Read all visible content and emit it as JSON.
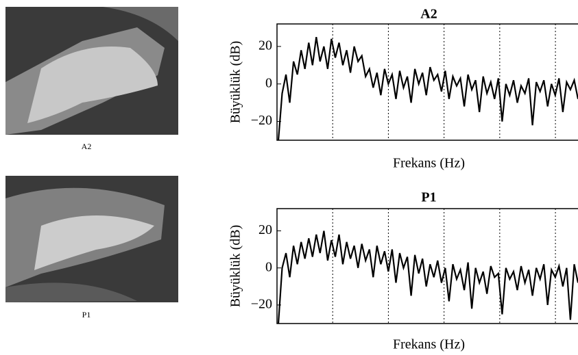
{
  "images": [
    {
      "caption": "A2"
    },
    {
      "caption": "P1"
    }
  ],
  "chart_data": [
    {
      "type": "line",
      "title": "A2",
      "ylabel": "Büyüklük (dB)",
      "xlabel": "Frekans (Hz)",
      "color": "#000000",
      "ylim": [
        -30,
        32
      ],
      "yticks": [
        {
          "value": -20,
          "label": "−20"
        },
        0,
        20
      ],
      "values": [
        -30,
        -5,
        5,
        -10,
        12,
        5,
        18,
        8,
        22,
        10,
        25,
        12,
        20,
        8,
        24,
        14,
        22,
        10,
        18,
        6,
        20,
        12,
        15,
        4,
        8,
        -2,
        6,
        -6,
        8,
        0,
        5,
        -8,
        7,
        -2,
        4,
        -10,
        8,
        0,
        6,
        -6,
        9,
        2,
        5,
        -4,
        7,
        -8,
        4,
        -1,
        3,
        -12,
        5,
        -3,
        2,
        -15,
        4,
        -5,
        1,
        -8,
        3,
        -20,
        0,
        -6,
        2,
        -10,
        -1,
        -5,
        3,
        -22,
        1,
        -4,
        2,
        -12,
        0,
        -6,
        3,
        -15,
        1,
        -3,
        2,
        -8
      ]
    },
    {
      "type": "line",
      "title": "P1",
      "ylabel": "Büyüklük (dB)",
      "xlabel": "Frekans (Hz)",
      "color": "#000000",
      "ylim": [
        -30,
        32
      ],
      "yticks": [
        {
          "value": -20,
          "label": "−20"
        },
        0,
        20
      ],
      "values": [
        -30,
        0,
        8,
        -5,
        12,
        2,
        14,
        5,
        16,
        6,
        18,
        8,
        20,
        4,
        15,
        6,
        18,
        2,
        14,
        5,
        12,
        0,
        13,
        4,
        10,
        -5,
        12,
        2,
        9,
        -2,
        10,
        -8,
        8,
        0,
        6,
        -15,
        7,
        -3,
        5,
        -10,
        2,
        -5,
        4,
        -8,
        0,
        -18,
        2,
        -6,
        -1,
        -12,
        3,
        -22,
        0,
        -8,
        -2,
        -14,
        1,
        -5,
        -3,
        -25,
        0,
        -6,
        -2,
        -12,
        1,
        -8,
        -1,
        -15,
        0,
        -6,
        2,
        -20,
        -1,
        -5,
        1,
        -10,
        0,
        -28,
        2,
        -8
      ]
    }
  ]
}
